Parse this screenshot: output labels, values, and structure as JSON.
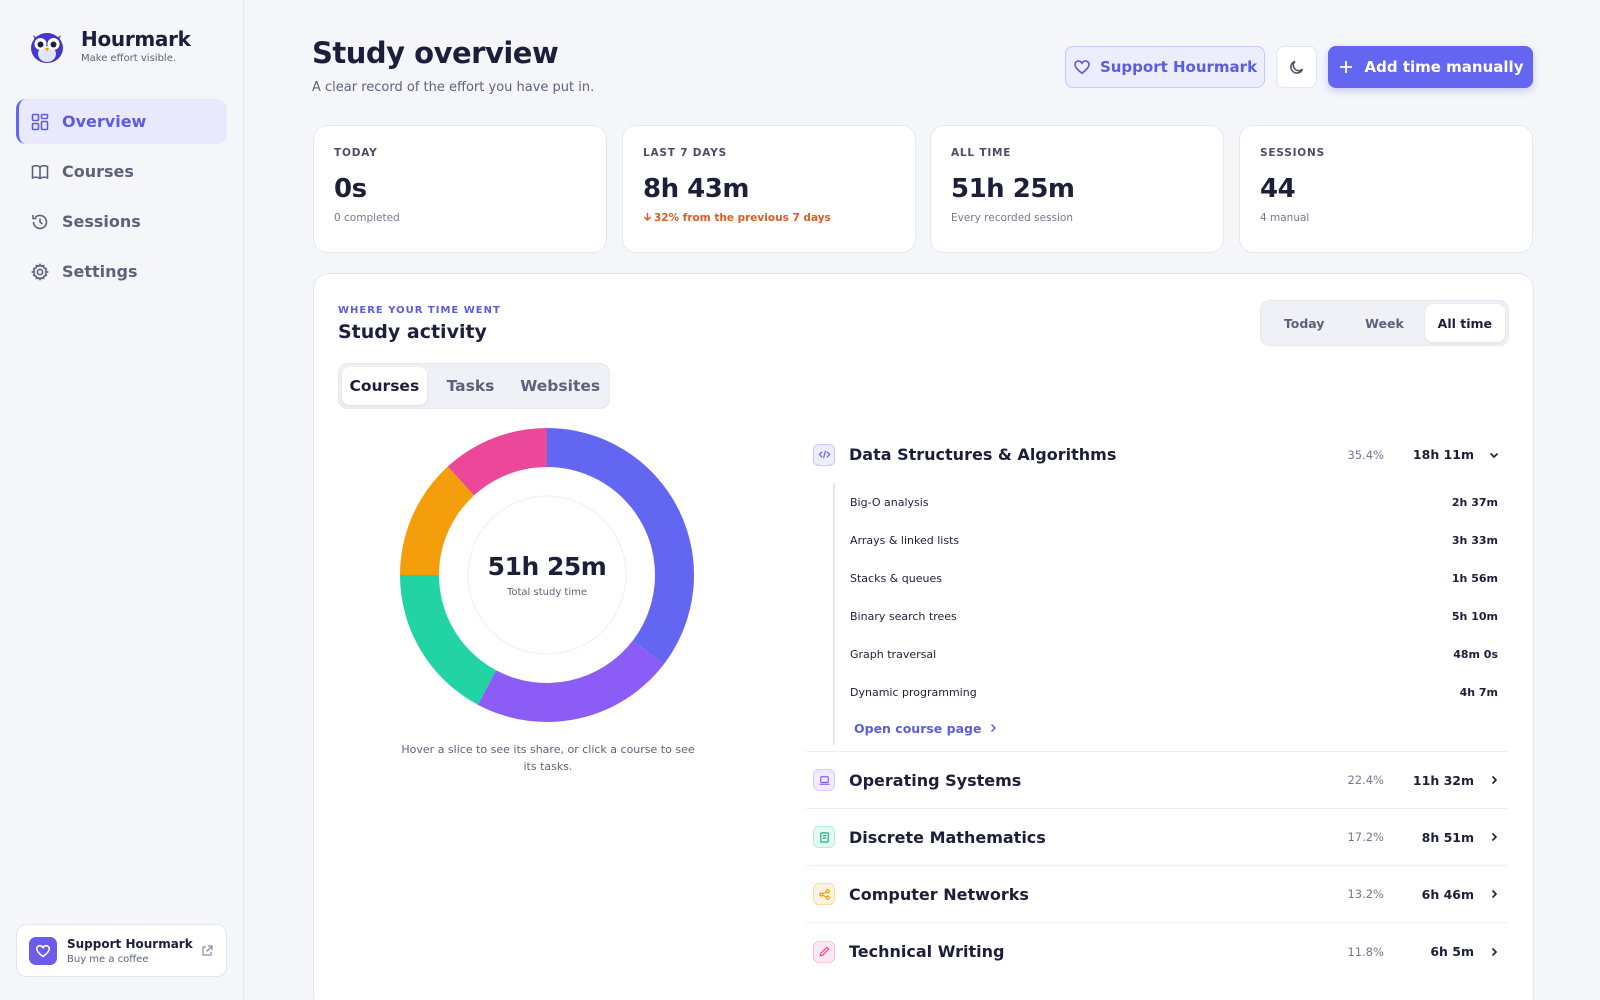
{
  "brand": {
    "name": "Hourmark",
    "tagline": "Make effort visible."
  },
  "nav": [
    {
      "label": "Overview",
      "icon": "grid-icon",
      "active": true
    },
    {
      "label": "Courses",
      "icon": "book-icon",
      "active": false
    },
    {
      "label": "Sessions",
      "icon": "history-icon",
      "active": false
    },
    {
      "label": "Settings",
      "icon": "gear-icon",
      "active": false
    }
  ],
  "sidebar_support": {
    "title": "Support Hourmark",
    "subtitle": "Buy me a coffee"
  },
  "header": {
    "title": "Study overview",
    "subtitle": "A clear record of the effort you have put in.",
    "support_label": "Support Hourmark",
    "add_label": "Add time manually"
  },
  "stats": [
    {
      "label": "TODAY",
      "value": "0s",
      "sub": "0 completed"
    },
    {
      "label": "LAST 7 DAYS",
      "value": "8h 43m",
      "sub": "32% from the previous 7 days",
      "trend": "down"
    },
    {
      "label": "ALL TIME",
      "value": "51h 25m",
      "sub": "Every recorded session"
    },
    {
      "label": "SESSIONS",
      "value": "44",
      "sub": "4 manual"
    }
  ],
  "activity": {
    "eyebrow": "WHERE YOUR TIME WENT",
    "title": "Study activity",
    "ranges": [
      "Today",
      "Week",
      "All time"
    ],
    "active_range": "All time",
    "tabs": [
      "Courses",
      "Tasks",
      "Websites"
    ],
    "active_tab": "Courses",
    "total": "51h 25m",
    "total_label": "Total study time",
    "hint": "Hover a slice to see its share, or click a course to see its tasks.",
    "open_course_label": "Open course page"
  },
  "courses": [
    {
      "name": "Data Structures & Algorithms",
      "pct": "35.4%",
      "time": "18h 11m",
      "expanded": true,
      "color": "#6366f1",
      "icon": "code-icon",
      "icon_bg": "#ecedfd",
      "tasks": [
        {
          "name": "Big-O analysis",
          "time": "2h 37m"
        },
        {
          "name": "Arrays & linked lists",
          "time": "3h 33m"
        },
        {
          "name": "Stacks & queues",
          "time": "1h 56m"
        },
        {
          "name": "Binary search trees",
          "time": "5h 10m"
        },
        {
          "name": "Graph traversal",
          "time": "48m 0s"
        },
        {
          "name": "Dynamic programming",
          "time": "4h 7m"
        }
      ]
    },
    {
      "name": "Operating Systems",
      "pct": "22.4%",
      "time": "11h 32m",
      "color": "#8b5cf6",
      "icon": "laptop-icon",
      "icon_bg": "#f1ebfe"
    },
    {
      "name": "Discrete Mathematics",
      "pct": "17.2%",
      "time": "8h 51m",
      "color": "#22d3a3",
      "icon": "notebook-icon",
      "icon_bg": "#e3f9f1"
    },
    {
      "name": "Computer Networks",
      "pct": "13.2%",
      "time": "6h 46m",
      "color": "#f59e0b",
      "icon": "share-icon",
      "icon_bg": "#fef3e0"
    },
    {
      "name": "Technical Writing",
      "pct": "11.8%",
      "time": "6h 5m",
      "color": "#ec4899",
      "icon": "pen-icon",
      "icon_bg": "#fde8f3"
    }
  ],
  "chart_data": {
    "type": "pie",
    "categories": [
      "Data Structures & Algorithms",
      "Operating Systems",
      "Discrete Mathematics",
      "Computer Networks",
      "Technical Writing"
    ],
    "values": [
      35.4,
      22.4,
      17.2,
      13.2,
      11.8
    ],
    "colors": [
      "#6366f1",
      "#8b5cf6",
      "#22d3a3",
      "#f59e0b",
      "#ec4899"
    ]
  }
}
